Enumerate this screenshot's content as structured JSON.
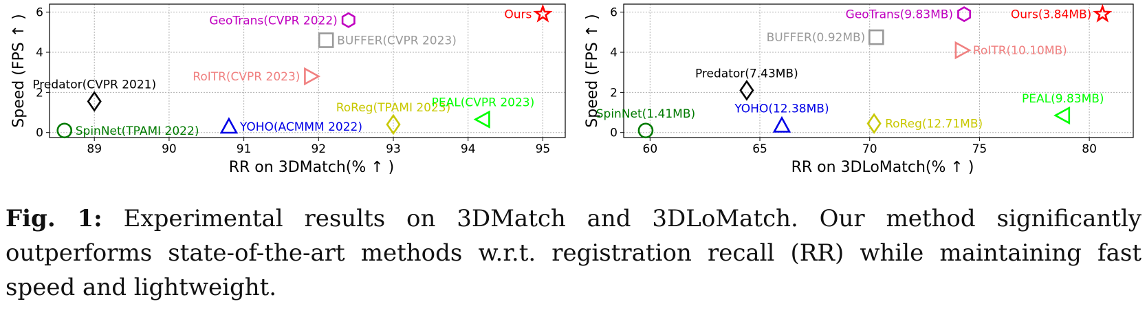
{
  "chart_data": [
    {
      "type": "scatter",
      "title": "",
      "xlabel": "RR on 3DMatch(% ↑ )",
      "ylabel": "Speed (FPS ↑ )",
      "xlim": [
        88.4,
        95.3
      ],
      "ylim": [
        -0.25,
        6.4
      ],
      "xticks": [
        89,
        90,
        91,
        92,
        93,
        94,
        95
      ],
      "yticks": [
        0,
        2,
        4,
        6
      ],
      "grid": true,
      "points": [
        {
          "label": "SpinNet(TPAMI 2022)",
          "x": 88.6,
          "y": 0.1,
          "marker": "circle",
          "color": "#007a00",
          "label_pos": "right"
        },
        {
          "label": "Predator(CVPR 2021)",
          "x": 89.0,
          "y": 1.55,
          "marker": "diamond",
          "color": "#000000",
          "label_pos": "above"
        },
        {
          "label": "YOHO(ACMMM 2022)",
          "x": 90.8,
          "y": 0.3,
          "marker": "triangle-up",
          "color": "#0000e6",
          "label_pos": "right"
        },
        {
          "label": "RoITR(CVPR 2023)",
          "x": 91.9,
          "y": 2.8,
          "marker": "triangle-right",
          "color": "#f08080",
          "label_pos": "left"
        },
        {
          "label": "BUFFER(CVPR 2023)",
          "x": 92.1,
          "y": 4.6,
          "marker": "square",
          "color": "#999999",
          "label_pos": "right"
        },
        {
          "label": "GeoTrans(CVPR 2022)",
          "x": 92.4,
          "y": 5.6,
          "marker": "hexagon",
          "color": "#c000c0",
          "label_pos": "left"
        },
        {
          "label": "RoReg(TPAMI 2023)",
          "x": 93.0,
          "y": 0.4,
          "marker": "diamond",
          "color": "#c8c800",
          "label_pos": "above"
        },
        {
          "label": "PEAL(CVPR 2023)",
          "x": 94.2,
          "y": 0.65,
          "marker": "triangle-left",
          "color": "#00ff00",
          "label_pos": "above"
        },
        {
          "label": "Ours",
          "x": 95.0,
          "y": 5.9,
          "marker": "star",
          "color": "#ff0000",
          "label_pos": "left"
        }
      ]
    },
    {
      "type": "scatter",
      "title": "",
      "xlabel": "RR on 3DLoMatch(% ↑ )",
      "ylabel": "Speed (FPS ↑ )",
      "xlim": [
        58.8,
        82.0
      ],
      "ylim": [
        -0.25,
        6.4
      ],
      "xticks": [
        60,
        65,
        70,
        75,
        80
      ],
      "yticks": [
        0,
        2,
        4,
        6
      ],
      "grid": true,
      "points": [
        {
          "label": "SpinNet(1.41MB)",
          "x": 59.8,
          "y": 0.1,
          "marker": "circle",
          "color": "#007a00",
          "label_pos": "above"
        },
        {
          "label": "Predator(7.43MB)",
          "x": 64.4,
          "y": 2.1,
          "marker": "diamond",
          "color": "#000000",
          "label_pos": "above"
        },
        {
          "label": "YOHO(12.38MB)",
          "x": 66.0,
          "y": 0.35,
          "marker": "triangle-up",
          "color": "#0000e6",
          "label_pos": "above"
        },
        {
          "label": "RoReg(12.71MB)",
          "x": 70.2,
          "y": 0.45,
          "marker": "diamond",
          "color": "#c8c800",
          "label_pos": "right"
        },
        {
          "label": "BUFFER(0.92MB)",
          "x": 70.3,
          "y": 4.75,
          "marker": "square",
          "color": "#999999",
          "label_pos": "left"
        },
        {
          "label": "RoITR(10.10MB)",
          "x": 74.2,
          "y": 4.1,
          "marker": "triangle-right",
          "color": "#f08080",
          "label_pos": "right"
        },
        {
          "label": "GeoTrans(9.83MB)",
          "x": 74.3,
          "y": 5.9,
          "marker": "hexagon",
          "color": "#c000c0",
          "label_pos": "left"
        },
        {
          "label": "PEAL(9.83MB)",
          "x": 78.8,
          "y": 0.85,
          "marker": "triangle-left",
          "color": "#00ff00",
          "label_pos": "above"
        },
        {
          "label": "Ours(3.84MB)",
          "x": 80.6,
          "y": 5.9,
          "marker": "star",
          "color": "#ff0000",
          "label_pos": "left"
        }
      ]
    }
  ],
  "caption": {
    "label": "Fig. 1:",
    "text": "Experimental results on 3DMatch and 3DLoMatch. Our method significantly outperforms state-of-the-art methods w.r.t. registration recall (RR) while maintaining fast speed and lightweight."
  }
}
